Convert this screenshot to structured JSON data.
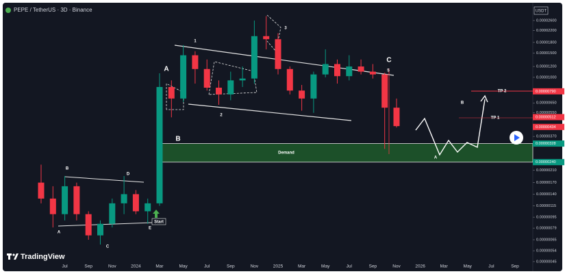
{
  "chart_data": {
    "type": "candlestick",
    "title": "PEPE / TetherUS · 3D · Binance",
    "currency": "USDT",
    "logo": "TradingView",
    "categories": [
      null,
      null,
      "Jul",
      null,
      "Sep",
      null,
      "Nov",
      null,
      "2024",
      null,
      "Mar",
      null,
      "May",
      null,
      "Jul",
      null,
      "Sep",
      null,
      "Nov",
      null,
      "2025",
      null,
      "Mar",
      null,
      "May",
      null,
      "Jul",
      null,
      "Sep",
      null,
      "Nov",
      null,
      "2026",
      null,
      "Mar",
      null,
      "May",
      null,
      "Jul",
      null,
      "Sep",
      null
    ],
    "open": [
      1.7e-06,
      1.3e-06,
      1e-06,
      1.6e-06,
      1e-06,
      7e-07,
      8.5e-07,
      1.2e-06,
      1.4e-06,
      1.05e-06,
      1.2e-06,
      8.5e-06,
      7e-06,
      1.45e-05,
      1.15e-05,
      8.4e-06,
      7.5e-06,
      9.5e-06,
      9.8e-06,
      2e-05,
      1.9e-05,
      1.15e-05,
      8e-06,
      7e-06,
      1.05e-05,
      1.25e-05,
      1.02e-05,
      1.2e-05,
      1.1e-05,
      1.05e-05,
      6e-06,
      null,
      null,
      null,
      null,
      null,
      null,
      null,
      null,
      null,
      null,
      null
    ],
    "high": [
      2.3e-06,
      1.6e-06,
      1.9e-06,
      1.7e-06,
      1.05e-06,
      9e-07,
      1.3e-06,
      1.9e-06,
      1.5e-06,
      1.3e-06,
      1.07e-05,
      9.5e-06,
      1.72e-05,
      1.55e-05,
      1.35e-05,
      9.5e-06,
      1.1e-05,
      1.2e-05,
      2.6e-05,
      2.8e-05,
      2.1e-05,
      1.2e-05,
      8.8e-06,
      1.1e-05,
      1.6e-05,
      1.35e-05,
      1.45e-05,
      1.35e-05,
      1.25e-05,
      1.08e-05,
      7e-06,
      null,
      null,
      null,
      null,
      null,
      null,
      null,
      null,
      null,
      null,
      null
    ],
    "low": [
      1.2e-06,
      8e-07,
      9e-07,
      9e-07,
      6.5e-07,
      6e-07,
      8e-07,
      1e-06,
      1e-06,
      8.5e-07,
      1.15e-06,
      5.1e-06,
      6.6e-06,
      9e-06,
      8e-06,
      6.3e-06,
      6.8e-06,
      8.5e-06,
      9e-06,
      1.6e-05,
      1.05e-05,
      7.5e-06,
      5.7e-06,
      5.5e-06,
      1e-05,
      9e-06,
      9.5e-06,
      1.05e-05,
      9.8e-06,
      3e-06,
      4.3e-06,
      null,
      null,
      null,
      null,
      null,
      null,
      null,
      null,
      null,
      null,
      null
    ],
    "close": [
      1.3e-06,
      1e-06,
      1.6e-06,
      1e-06,
      7e-07,
      8.5e-07,
      1.2e-06,
      1.4e-06,
      1.05e-06,
      1.2e-06,
      8.5e-06,
      7e-06,
      1.45e-05,
      1.15e-05,
      8.4e-06,
      7.5e-06,
      9.5e-06,
      9.8e-06,
      2e-05,
      1.9e-05,
      1.15e-05,
      8e-06,
      7e-06,
      1.05e-05,
      1.25e-05,
      1.02e-05,
      1.2e-05,
      1.1e-05,
      1.05e-05,
      6e-06,
      4.4e-06,
      null,
      null,
      null,
      null,
      null,
      null,
      null,
      null,
      null,
      null,
      null
    ],
    "up_color": "#089981",
    "down_color": "#f23645",
    "log_scale": true,
    "ylim": [
      3.87e-07,
      3.35e-05
    ],
    "yticks": [
      {
        "value": 2.6e-05,
        "label": "0.00002600"
      },
      {
        "value": 2.2e-05,
        "label": "0.00002200"
      },
      {
        "value": 1.8e-05,
        "label": "0.00001800"
      },
      {
        "value": 1.5e-05,
        "label": "0.00001500"
      },
      {
        "value": 1.2e-05,
        "label": "0.00001200"
      },
      {
        "value": 1e-05,
        "label": "0.00001000"
      },
      {
        "value": 6.5e-06,
        "label": "0.00000650"
      },
      {
        "value": 5.5e-06,
        "label": "0.00000550"
      },
      {
        "value": 3.7e-06,
        "label": "0.00000370"
      },
      {
        "value": 2.1e-06,
        "label": "0.00000210"
      },
      {
        "value": 1.7e-06,
        "label": "0.00000170"
      },
      {
        "value": 1.4e-06,
        "label": "0.00000140"
      },
      {
        "value": 1.15e-06,
        "label": "0.00000115"
      },
      {
        "value": 9.5e-07,
        "label": "0.00000095"
      },
      {
        "value": 7.9e-07,
        "label": "0.00000079"
      },
      {
        "value": 6.5e-07,
        "label": "0.00000065"
      },
      {
        "value": 5.4e-07,
        "label": "0.00000054"
      },
      {
        "value": 4.5e-07,
        "label": "0.00000045"
      }
    ],
    "price_labels": [
      {
        "value": 7.9e-06,
        "label": "0.00000790",
        "color": "#f23645"
      },
      {
        "value": 5.12e-06,
        "label": "0.00000512",
        "color": "#f23645"
      },
      {
        "value": 4.34e-06,
        "label": "0.00000434",
        "color": "#f23645"
      },
      {
        "value": 3.28e-06,
        "label": "0.00000328",
        "color": "#089981"
      },
      {
        "value": 2.4e-06,
        "label": "0.00000240",
        "color": "#089981"
      }
    ],
    "zone_color": "#1f5a2a",
    "annotations": [
      "A",
      "B",
      "C",
      "D",
      "E",
      "Start",
      "A",
      "B",
      "1",
      "2",
      "3",
      "C",
      "5",
      "Demand",
      "TP 2",
      "TP 1",
      "B",
      "A"
    ]
  }
}
